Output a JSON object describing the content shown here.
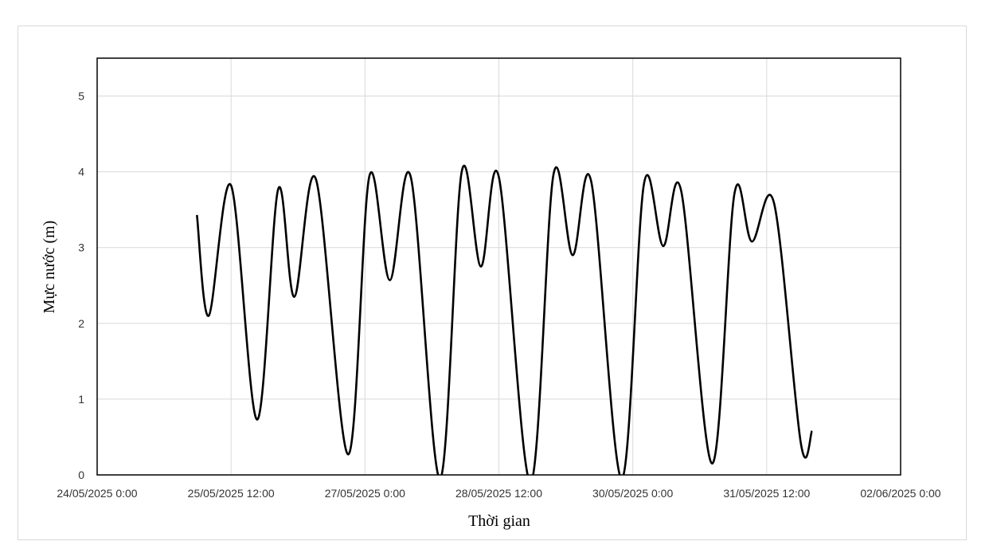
{
  "chart_data": {
    "type": "line",
    "title": "",
    "xlabel": "Thời gian",
    "ylabel": "Mực nước (m)",
    "ylim": [
      0,
      5.5
    ],
    "xlim": [
      "2025-05-24T00:00",
      "2025-06-02T00:00"
    ],
    "x_tick_labels": [
      "24/05/2025 0:00",
      "25/05/2025 12:00",
      "27/05/2025 0:00",
      "28/05/2025 12:00",
      "30/05/2025 0:00",
      "31/05/2025 12:00",
      "02/06/2025 0:00"
    ],
    "y_tick_labels": [
      "0",
      "1",
      "2",
      "3",
      "4",
      "5"
    ],
    "grid": true,
    "legend": "none",
    "colors": {
      "line": "#000000",
      "grid": "#d9d9d9",
      "frame": "#000000"
    },
    "series": [
      {
        "x": [
          "2025-05-25T02:50",
          "2025-05-25T06:00",
          "2025-05-25T12:00",
          "2025-05-25T19:00",
          "2025-05-26T00:40",
          "2025-05-26T05:00",
          "2025-05-26T10:50",
          "2025-05-26T19:30",
          "2025-05-27T01:10",
          "2025-05-27T06:40",
          "2025-05-27T12:20",
          "2025-05-27T20:10",
          "2025-05-28T02:00",
          "2025-05-28T07:10",
          "2025-05-28T12:00",
          "2025-05-28T20:30",
          "2025-05-29T02:40",
          "2025-05-29T07:50",
          "2025-05-29T12:50",
          "2025-05-29T21:00",
          "2025-05-30T03:00",
          "2025-05-30T08:10",
          "2025-05-30T13:00",
          "2025-05-30T21:20",
          "2025-05-31T03:20",
          "2025-05-31T08:00",
          "2025-05-31T14:00",
          "2025-05-31T21:10",
          "2025-06-01T00:10"
        ],
        "y": [
          3.43,
          2.1,
          3.82,
          0.73,
          3.77,
          2.35,
          3.9,
          0.27,
          3.94,
          2.57,
          3.93,
          -0.05,
          4.0,
          2.75,
          3.93,
          -0.1,
          3.96,
          2.9,
          3.87,
          -0.05,
          3.84,
          3.02,
          3.75,
          0.15,
          3.71,
          3.08,
          3.58,
          0.42,
          0.58
        ]
      }
    ]
  }
}
